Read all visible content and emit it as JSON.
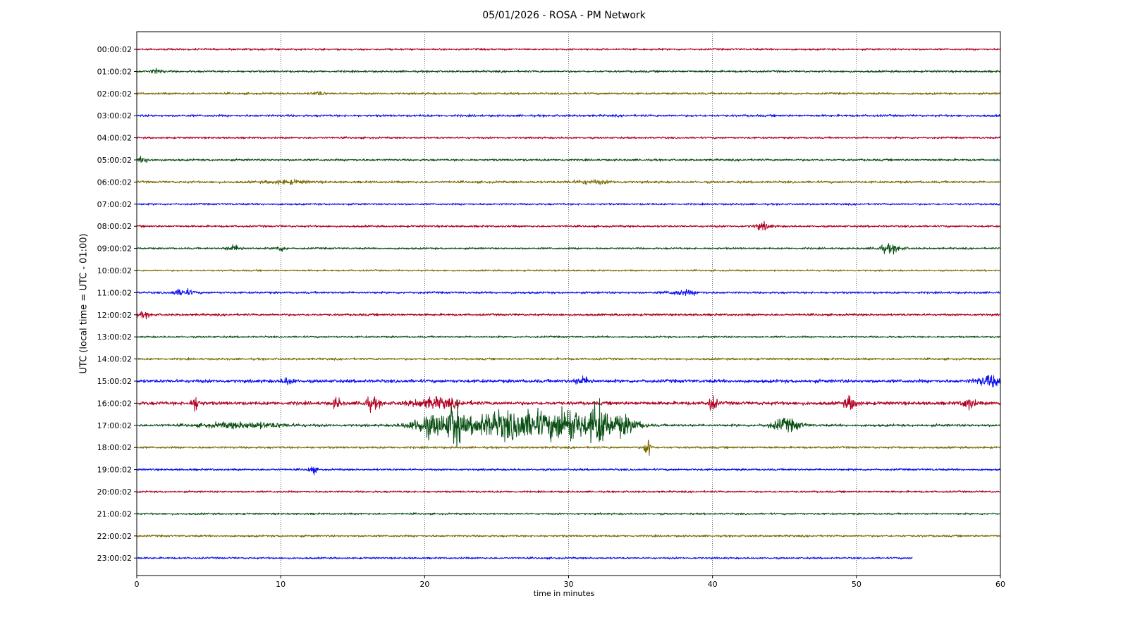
{
  "chart_data": {
    "type": "line",
    "title": "05/01/2026 - ROSA - PM Network",
    "xlabel": "time in minutes",
    "ylabel": "UTC (local time = UTC - 01:00)",
    "xlim": [
      0,
      60
    ],
    "x_ticks": [
      "0",
      "10",
      "20",
      "30",
      "40",
      "50",
      "60"
    ],
    "x_grid_at": [
      10,
      20,
      30,
      40,
      50
    ],
    "grid": "vertical dotted",
    "color_cycle": [
      "#b00020",
      "#0a4f14",
      "#7a6a00",
      "#0a10f0"
    ],
    "series": [
      {
        "name": "00:00:02",
        "end_minute": 60,
        "noise": 0.9,
        "events": []
      },
      {
        "name": "01:00:02",
        "end_minute": 60,
        "noise": 1.0,
        "events": [
          [
            1.4,
            0.3,
            2
          ]
        ]
      },
      {
        "name": "02:00:02",
        "end_minute": 60,
        "noise": 1.0,
        "events": [
          [
            12.6,
            0.3,
            1.6
          ]
        ]
      },
      {
        "name": "03:00:02",
        "end_minute": 60,
        "noise": 1.1,
        "events": []
      },
      {
        "name": "04:00:02",
        "end_minute": 60,
        "noise": 0.9,
        "events": []
      },
      {
        "name": "05:00:02",
        "end_minute": 60,
        "noise": 1.0,
        "events": [
          [
            0.4,
            0.4,
            2.2
          ]
        ]
      },
      {
        "name": "06:00:02",
        "end_minute": 60,
        "noise": 1.1,
        "events": [
          [
            10.5,
            1.0,
            1.5
          ],
          [
            31.5,
            1.0,
            1.5
          ]
        ]
      },
      {
        "name": "07:00:02",
        "end_minute": 60,
        "noise": 0.9,
        "events": []
      },
      {
        "name": "08:00:02",
        "end_minute": 60,
        "noise": 1.0,
        "events": [
          [
            43.5,
            0.4,
            3
          ]
        ]
      },
      {
        "name": "09:00:02",
        "end_minute": 60,
        "noise": 0.9,
        "events": [
          [
            6.8,
            0.4,
            2.5
          ],
          [
            10.0,
            0.3,
            2.2
          ],
          [
            52.3,
            0.6,
            3.5
          ]
        ]
      },
      {
        "name": "10:00:02",
        "end_minute": 60,
        "noise": 0.8,
        "events": []
      },
      {
        "name": "11:00:02",
        "end_minute": 60,
        "noise": 1.0,
        "events": [
          [
            3.2,
            0.5,
            3
          ],
          [
            37.9,
            0.8,
            2
          ]
        ]
      },
      {
        "name": "12:00:02",
        "end_minute": 60,
        "noise": 1.1,
        "events": [
          [
            0.5,
            0.4,
            2
          ]
        ]
      },
      {
        "name": "13:00:02",
        "end_minute": 60,
        "noise": 0.9,
        "events": []
      },
      {
        "name": "14:00:02",
        "end_minute": 60,
        "noise": 1.0,
        "events": []
      },
      {
        "name": "15:00:02",
        "end_minute": 60,
        "noise": 1.6,
        "events": [
          [
            10.5,
            0.3,
            3
          ],
          [
            31.0,
            0.4,
            3
          ],
          [
            59.4,
            0.7,
            5
          ]
        ]
      },
      {
        "name": "16:00:02",
        "end_minute": 60,
        "noise": 1.7,
        "events": [
          [
            4.1,
            0.2,
            7
          ],
          [
            13.9,
            0.2,
            5
          ],
          [
            16.3,
            0.4,
            5
          ],
          [
            20.8,
            1.2,
            4.5
          ],
          [
            40.0,
            0.2,
            7
          ],
          [
            49.6,
            0.3,
            6
          ],
          [
            57.8,
            0.3,
            5
          ]
        ]
      },
      {
        "name": "17:00:02",
        "end_minute": 60,
        "noise": 1.2,
        "events": [
          [
            7.5,
            2.0,
            2.5
          ],
          [
            20.5,
            1.0,
            10
          ],
          [
            22.1,
            0.3,
            20
          ],
          [
            24.5,
            1.5,
            10
          ],
          [
            27.5,
            1.5,
            12
          ],
          [
            30.1,
            0.8,
            15
          ],
          [
            32.0,
            0.4,
            20
          ],
          [
            33.5,
            0.9,
            10
          ],
          [
            44.8,
            0.6,
            4
          ],
          [
            45.5,
            0.6,
            3
          ]
        ]
      },
      {
        "name": "18:00:02",
        "end_minute": 60,
        "noise": 1.0,
        "events": [
          [
            35.5,
            0.15,
            11
          ]
        ]
      },
      {
        "name": "19:00:02",
        "end_minute": 60,
        "noise": 1.0,
        "events": [
          [
            12.2,
            0.2,
            3.5
          ]
        ]
      },
      {
        "name": "20:00:02",
        "end_minute": 60,
        "noise": 0.9,
        "events": []
      },
      {
        "name": "21:00:02",
        "end_minute": 60,
        "noise": 0.9,
        "events": []
      },
      {
        "name": "22:00:02",
        "end_minute": 60,
        "noise": 1.0,
        "events": []
      },
      {
        "name": "23:00:02",
        "end_minute": 53.9,
        "noise": 0.9,
        "events": []
      }
    ]
  }
}
